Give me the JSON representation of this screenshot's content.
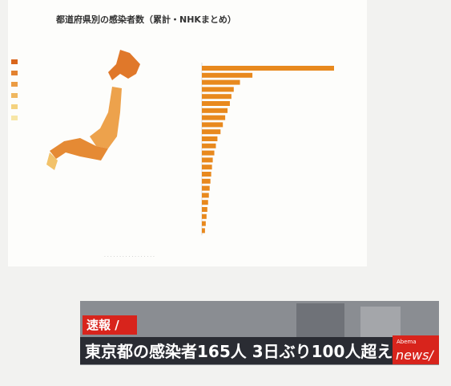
{
  "header": {
    "title": "都道府県別の感染者数（累計・NHKまとめ）"
  },
  "chart_data": {
    "type": "bar",
    "orientation": "horizontal",
    "color": "#e8891e",
    "categories": [
      null,
      null,
      null,
      null,
      null,
      null,
      null,
      null,
      null,
      null,
      null,
      null,
      null,
      null,
      null,
      null,
      null,
      null,
      null,
      null,
      null,
      null,
      null,
      null
    ],
    "values": [
      1700,
      650,
      490,
      410,
      380,
      360,
      330,
      300,
      270,
      240,
      200,
      180,
      160,
      140,
      130,
      120,
      110,
      100,
      90,
      80,
      70,
      60,
      50,
      40
    ]
  },
  "caption": {
    "flash": "速報 /",
    "headline": "東京都の感染者165人 3日ぶり100人超え",
    "logo_small": "Abema",
    "logo": "news/"
  }
}
